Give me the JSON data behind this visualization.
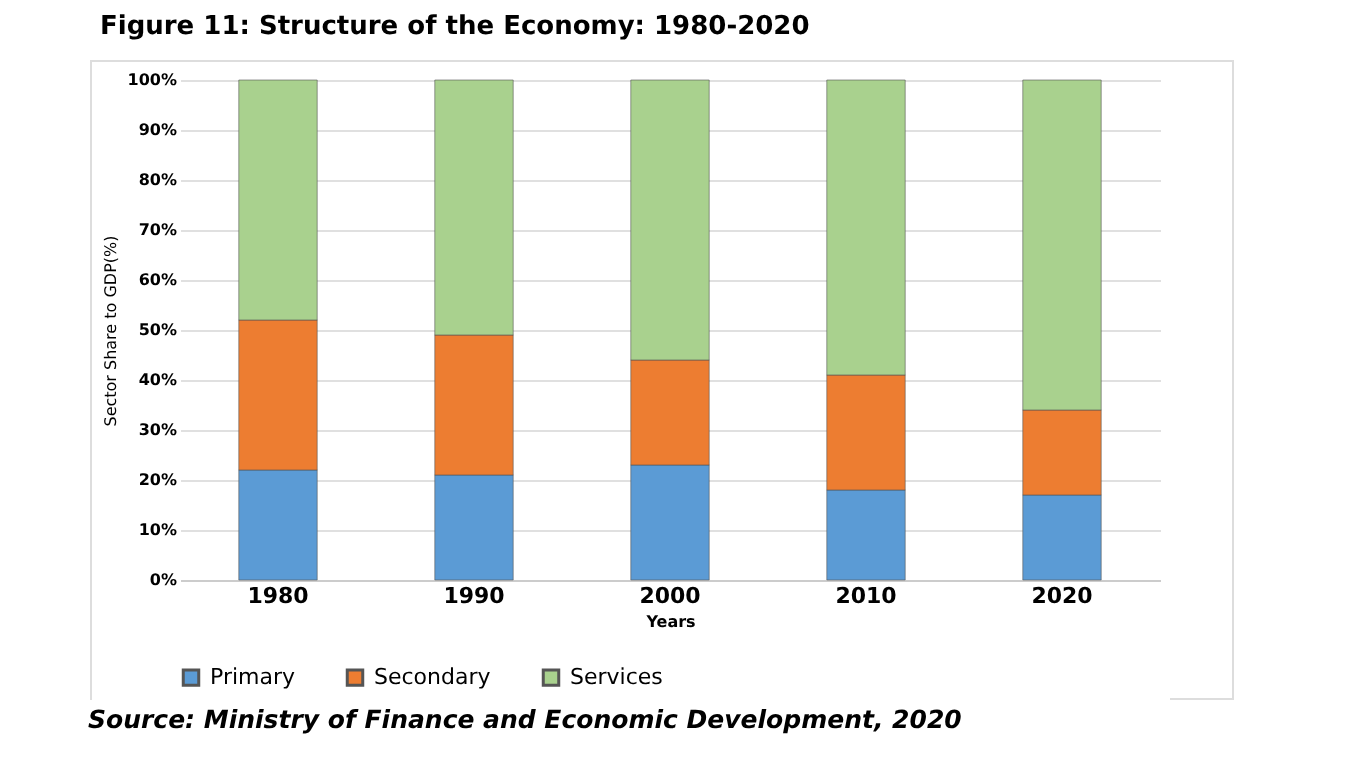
{
  "chart_data": {
    "type": "bar",
    "stacked": true,
    "title": "Figure 11: Structure of the Economy: 1980-2020",
    "xlabel": "Years",
    "ylabel": "Sector Share to GDP(%)",
    "categories": [
      "1980",
      "1990",
      "2000",
      "2010",
      "2020"
    ],
    "series": [
      {
        "name": "Primary",
        "color": "#5b9bd5",
        "values": [
          22,
          21,
          23,
          18,
          17
        ]
      },
      {
        "name": "Secondary",
        "color": "#ed7d31",
        "values": [
          30,
          28,
          21,
          23,
          17
        ]
      },
      {
        "name": "Services",
        "color": "#a9d18e",
        "values": [
          48,
          51,
          56,
          59,
          66
        ]
      }
    ],
    "ylim": [
      0,
      100
    ],
    "yticks": [
      {
        "value": 0,
        "label": "0%"
      },
      {
        "value": 10,
        "label": "10%"
      },
      {
        "value": 20,
        "label": "20%"
      },
      {
        "value": 30,
        "label": "30%"
      },
      {
        "value": 40,
        "label": "40%"
      },
      {
        "value": 50,
        "label": "50%"
      },
      {
        "value": 60,
        "label": "60%"
      },
      {
        "value": 70,
        "label": "70%"
      },
      {
        "value": 80,
        "label": "80%"
      },
      {
        "value": 90,
        "label": "90%"
      },
      {
        "value": 100,
        "label": "100%"
      }
    ],
    "grid": "y",
    "legend": "bottom",
    "annotations": [
      "Source: Ministry of Finance and Economic Development, 2020"
    ]
  }
}
